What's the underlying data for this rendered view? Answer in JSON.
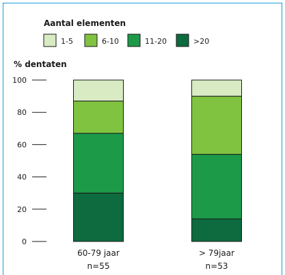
{
  "chart_data": {
    "type": "bar",
    "stacked": true,
    "legend_title": "Aantal elementen",
    "ylabel": "% dentaten",
    "ylim": [
      0,
      100
    ],
    "yticks": [
      0,
      20,
      40,
      60,
      80,
      100
    ],
    "categories": [
      "60-79 jaar",
      "> 79jaar"
    ],
    "subcategories": [
      "n=55",
      "n=53"
    ],
    "series": [
      {
        "name": ">20",
        "color": "#0d6b3f",
        "values": [
          30,
          14
        ]
      },
      {
        "name": "11-20",
        "color": "#1c9a48",
        "values": [
          37,
          40
        ]
      },
      {
        "name": "6-10",
        "color": "#80c341",
        "values": [
          20,
          36
        ]
      },
      {
        "name": "1-5",
        "color": "#d8ebc3",
        "values": [
          13,
          10
        ]
      }
    ],
    "legend_order": [
      "1-5",
      "6-10",
      "11-20",
      ">20"
    ],
    "legend_placement": "top",
    "grid": false
  }
}
